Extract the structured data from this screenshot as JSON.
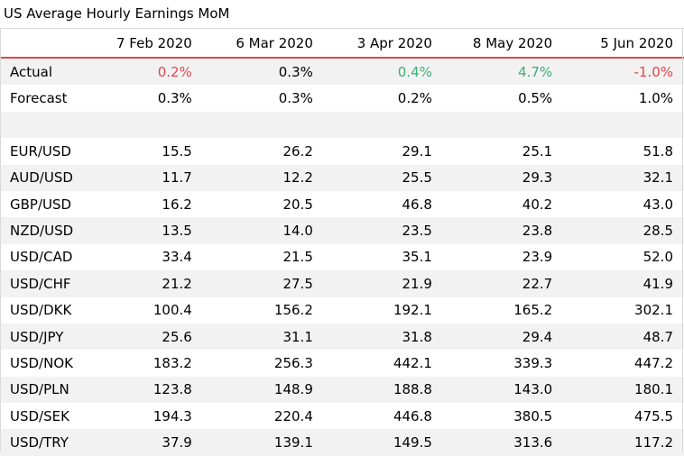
{
  "chart_data": {
    "type": "table",
    "title": "US Average Hourly Earnings MoM",
    "columns": [
      "7 Feb 2020",
      "6 Mar 2020",
      "3 Apr 2020",
      "8 May 2020",
      "5 Jun 2020"
    ],
    "actual": {
      "label": "Actual",
      "values": [
        "0.2%",
        "0.3%",
        "0.4%",
        "4.7%",
        "-1.0%"
      ]
    },
    "forecast": {
      "label": "Forecast",
      "values": [
        "0.3%",
        "0.3%",
        "0.2%",
        "0.5%",
        "1.0%"
      ]
    },
    "rows": [
      {
        "label": "EUR/USD",
        "values": [
          "15.5",
          "26.2",
          "29.1",
          "25.1",
          "51.8"
        ]
      },
      {
        "label": "AUD/USD",
        "values": [
          "11.7",
          "12.2",
          "25.5",
          "29.3",
          "32.1"
        ]
      },
      {
        "label": "GBP/USD",
        "values": [
          "16.2",
          "20.5",
          "46.8",
          "40.2",
          "43.0"
        ]
      },
      {
        "label": "NZD/USD",
        "values": [
          "13.5",
          "14.0",
          "23.5",
          "23.8",
          "28.5"
        ]
      },
      {
        "label": "USD/CAD",
        "values": [
          "33.4",
          "21.5",
          "35.1",
          "23.9",
          "52.0"
        ]
      },
      {
        "label": "USD/CHF",
        "values": [
          "21.2",
          "27.5",
          "21.9",
          "22.7",
          "41.9"
        ]
      },
      {
        "label": "USD/DKK",
        "values": [
          "100.4",
          "156.2",
          "192.1",
          "165.2",
          "302.1"
        ]
      },
      {
        "label": "USD/JPY",
        "values": [
          "25.6",
          "31.1",
          "31.8",
          "29.4",
          "48.7"
        ]
      },
      {
        "label": "USD/NOK",
        "values": [
          "183.2",
          "256.3",
          "442.1",
          "339.3",
          "447.2"
        ]
      },
      {
        "label": "USD/PLN",
        "values": [
          "123.8",
          "148.9",
          "188.8",
          "143.0",
          "180.1"
        ]
      },
      {
        "label": "USD/SEK",
        "values": [
          "194.3",
          "220.4",
          "446.8",
          "380.5",
          "475.5"
        ]
      },
      {
        "label": "USD/TRY",
        "values": [
          "37.9",
          "139.1",
          "149.5",
          "313.6",
          "117.2"
        ]
      }
    ],
    "colors": {
      "up": "#3cae77",
      "down": "#e0454b",
      "header_rule": "#e0454b",
      "shade": "#f2f2f2"
    },
    "actual_colors": [
      "down",
      "none",
      "up",
      "up",
      "down"
    ]
  }
}
